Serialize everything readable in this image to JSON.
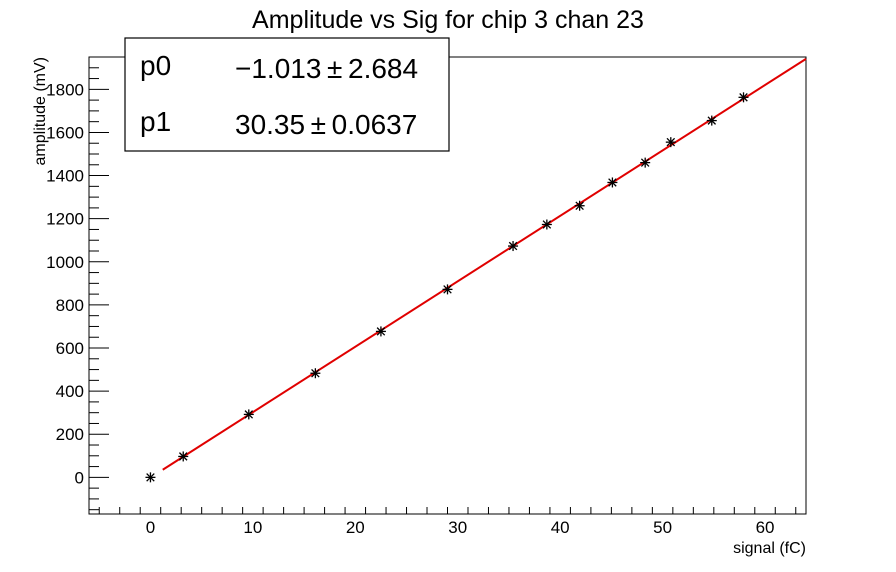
{
  "chart_data": {
    "type": "scatter",
    "title": "Amplitude vs Sig for chip 3 chan 23",
    "xlabel": "signal (fC)",
    "ylabel": "amplitude (mV)",
    "xlim": [
      -6,
      64
    ],
    "ylim": [
      -170,
      1950
    ],
    "x_ticks": [
      0,
      10,
      20,
      30,
      40,
      50,
      60
    ],
    "x_tick_labels": [
      "0",
      "10",
      "20",
      "30",
      "40",
      "50",
      "60"
    ],
    "y_ticks": [
      0,
      200,
      400,
      600,
      800,
      1000,
      1200,
      1400,
      1600,
      1800
    ],
    "y_tick_labels": [
      "0",
      "200",
      "400",
      "600",
      "800",
      "1000",
      "1200",
      "1400",
      "1600",
      "1800"
    ],
    "grid": false,
    "marker_color": "#000000",
    "fit_color": "#e00000",
    "points": [
      {
        "x": 0.0,
        "y": 0
      },
      {
        "x": 3.2,
        "y": 97
      },
      {
        "x": 9.6,
        "y": 292
      },
      {
        "x": 16.1,
        "y": 483
      },
      {
        "x": 22.5,
        "y": 677
      },
      {
        "x": 29.0,
        "y": 872
      },
      {
        "x": 35.4,
        "y": 1073
      },
      {
        "x": 38.7,
        "y": 1173
      },
      {
        "x": 41.9,
        "y": 1260
      },
      {
        "x": 45.1,
        "y": 1368
      },
      {
        "x": 48.3,
        "y": 1460
      },
      {
        "x": 50.8,
        "y": 1555
      },
      {
        "x": 54.8,
        "y": 1655
      },
      {
        "x": 57.9,
        "y": 1763
      }
    ],
    "fit": {
      "p0": -1.013,
      "p1": 30.35,
      "x_range": [
        1.2,
        64
      ]
    },
    "stats_box": {
      "rows": [
        {
          "name": "p0",
          "value": "−1.013 ± 2.684"
        },
        {
          "name": "p1",
          "value": "30.35 ± 0.0637"
        }
      ]
    }
  }
}
